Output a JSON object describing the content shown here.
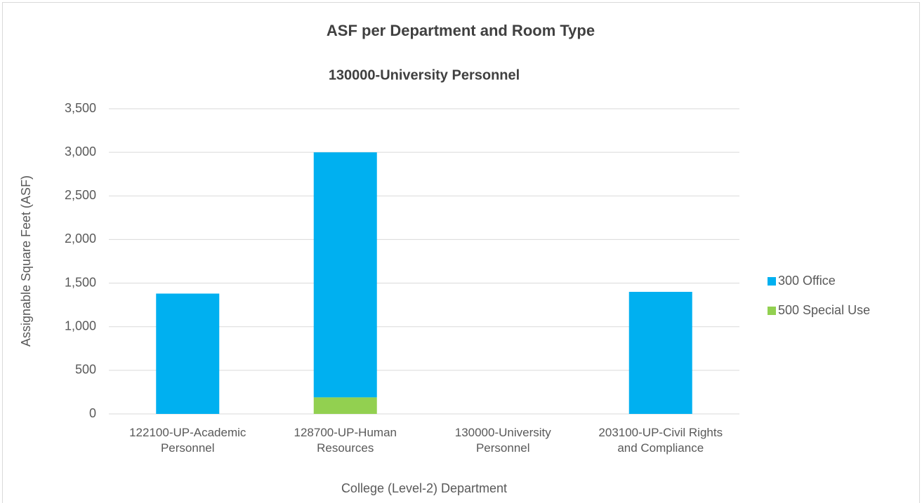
{
  "chart_data": {
    "type": "stacked_bar",
    "title": "ASF per Department and Room Type",
    "subtitle": "130000-University Personnel",
    "y_label": "Assignable Square Feet (ASF)",
    "x_label": "College (Level-2) Department",
    "categories": [
      "122100-UP-Academic Personnel",
      "128700-UP-Human Resources",
      "130000-University Personnel",
      "203100-UP-Civil Rights and Compliance"
    ],
    "series": [
      {
        "name": "300 Office",
        "color": "#00b0f0",
        "values": [
          1380,
          2810,
          null,
          1400
        ]
      },
      {
        "name": "500 Special Use",
        "color": "#92d050",
        "values": [
          null,
          190,
          null,
          null
        ]
      }
    ],
    "ylim": [
      0,
      3500
    ],
    "yticks": [
      0,
      500,
      {
        "value": 1000,
        "label": "1,000"
      },
      {
        "value": 1500,
        "label": "1,500"
      },
      {
        "value": 2000,
        "label": "2,000"
      },
      {
        "value": 2500,
        "label": "2,500"
      },
      {
        "value": 3000,
        "label": "3,000"
      },
      {
        "value": 3500,
        "label": "3,500"
      }
    ],
    "grid": true,
    "legend": "right"
  }
}
